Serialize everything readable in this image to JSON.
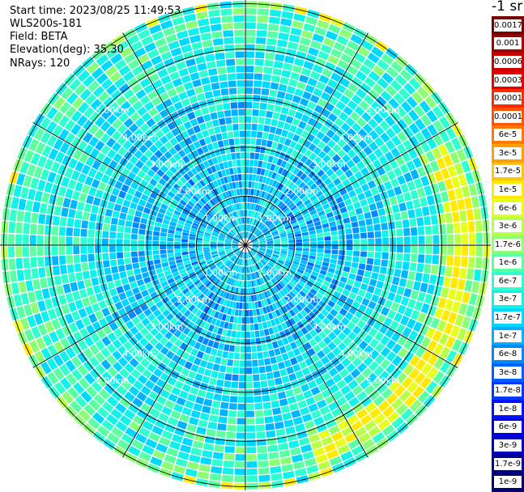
{
  "header": {
    "start_time": "Start time: 2023/08/25 11:49:53",
    "instrument": "WLS200s-181",
    "field": "Field: BETA",
    "elevation": "Elevation(deg): 35.30",
    "nrays": "NRays: 120"
  },
  "chart_data": {
    "type": "heatmap",
    "projection": "polar-ppi",
    "field": "BETA",
    "elevation_deg": 35.3,
    "n_rays": 120,
    "range_rings_km": [
      1,
      2,
      3,
      4,
      5
    ],
    "ring_labels": [
      "1.00km",
      "2.00km",
      "3.00km",
      "4.00km",
      "5.00km"
    ],
    "max_range_km": 5.0,
    "spoke_angles_deg": [
      0,
      30,
      60,
      90,
      120,
      150,
      180,
      210,
      240,
      270,
      300,
      330
    ],
    "colorbar": {
      "unit": "-1 sr",
      "tick_labels": [
        "0.0017",
        "0.001",
        "0.0006",
        "0.0003",
        "0.00017",
        "0.0001",
        "6e-5",
        "3e-5",
        "1.7e-5",
        "1e-5",
        "6e-6",
        "3e-6",
        "1.7e-6",
        "1e-6",
        "6e-7",
        "3e-7",
        "1.7e-7",
        "1e-7",
        "6e-8",
        "3e-8",
        "1.7e-8",
        "1e-8",
        "6e-9",
        "3e-9",
        "1.7e-9",
        "1e-9"
      ],
      "colors": [
        "#7a0000",
        "#a50000",
        "#c80000",
        "#e60000",
        "#ff2a00",
        "#ff5500",
        "#ff7a00",
        "#ffa000",
        "#ffc800",
        "#ffea00",
        "#e8ff1a",
        "#b8ff48",
        "#8cff74",
        "#5dffa3",
        "#30ffd0",
        "#12f0ec",
        "#00d8ff",
        "#00b2ff",
        "#0088ff",
        "#0060ff",
        "#0038ff",
        "#0014ff",
        "#0000e6",
        "#0000bf",
        "#000098",
        "#000070"
      ]
    }
  }
}
